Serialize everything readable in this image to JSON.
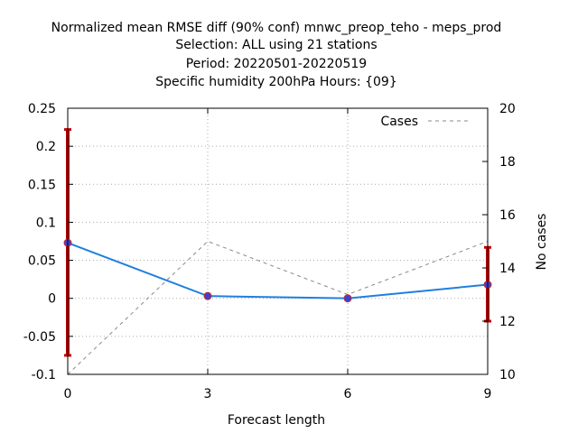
{
  "chart_data": {
    "type": "line",
    "title_lines": [
      "Normalized mean RMSE diff (90% conf) mnwc_preop_teho - meps_prod",
      "Selection: ALL using    21 stations",
      "Period: 20220501-20220519",
      "Specific humidity 200hPa   Hours: {09}"
    ],
    "xlabel": "Forecast length",
    "ylabel": "",
    "y2label": "No cases",
    "x": [
      0,
      3,
      6,
      9
    ],
    "xlim": [
      0,
      9
    ],
    "ylim": [
      -0.1,
      0.25
    ],
    "y2lim": [
      10,
      20
    ],
    "x_ticks": [
      0,
      3,
      6,
      9
    ],
    "y_ticks": [
      -0.1,
      -0.05,
      0,
      0.05,
      0.1,
      0.15,
      0.2,
      0.25
    ],
    "y_tick_labels": [
      "-0.1",
      "-0.05",
      "0",
      "0.05",
      "0.1",
      "0.15",
      "0.2",
      "0.25"
    ],
    "y2_ticks": [
      10,
      12,
      14,
      16,
      18,
      20
    ],
    "grid": true,
    "legend_position": "top-right",
    "series": [
      {
        "name": "",
        "axis": "left",
        "color": "#1f7fe0",
        "marker_color": "#4040d0",
        "values": [
          0.073,
          0.003,
          0.0,
          0.018
        ],
        "ci_low": [
          -0.075,
          null,
          null,
          -0.03
        ],
        "ci_high": [
          0.222,
          null,
          null,
          0.067
        ],
        "ci_color": "#c00000"
      },
      {
        "name": "Cases",
        "axis": "right",
        "style": "dashed",
        "color": "#888888",
        "values": [
          10,
          15,
          13,
          15
        ]
      }
    ]
  }
}
